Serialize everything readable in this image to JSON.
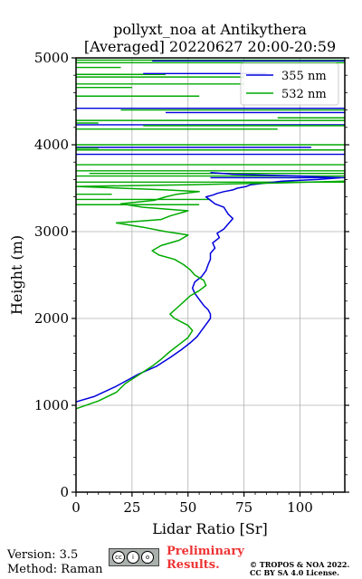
{
  "chart_data": {
    "type": "line",
    "title": "pollyxt_noa at Antikythera",
    "subtitle": "[Averaged] 20220627 20:00-20:59",
    "xlabel": "Lidar Ratio [Sr]",
    "ylabel": "Height (m)",
    "xlim": [
      0,
      120
    ],
    "ylim": [
      0,
      5000
    ],
    "xticks": [
      0,
      25,
      50,
      75,
      100
    ],
    "yticks": [
      0,
      1000,
      2000,
      3000,
      4000,
      5000
    ],
    "grid": true,
    "legend_position": "top-right",
    "series": [
      {
        "name": "355 nm",
        "color": "#0000dd",
        "x": [
          0,
          8,
          18,
          28,
          36,
          42,
          47,
          51,
          54,
          56,
          58,
          60,
          60,
          59,
          57,
          55,
          53,
          52,
          53,
          56,
          58,
          59,
          60,
          60,
          62,
          61,
          64,
          63,
          66,
          68,
          70,
          68,
          67,
          66,
          62,
          60,
          58,
          61,
          63,
          66,
          70,
          72,
          76,
          78,
          85,
          92,
          108,
          118,
          100,
          70,
          60
        ],
        "y": [
          1040,
          1100,
          1220,
          1360,
          1450,
          1550,
          1640,
          1720,
          1790,
          1860,
          1930,
          2000,
          2050,
          2100,
          2150,
          2220,
          2290,
          2350,
          2420,
          2480,
          2550,
          2620,
          2680,
          2750,
          2810,
          2870,
          2930,
          2980,
          3030,
          3090,
          3150,
          3200,
          3240,
          3280,
          3320,
          3360,
          3400,
          3420,
          3440,
          3460,
          3480,
          3500,
          3520,
          3540,
          3560,
          3580,
          3600,
          3620,
          3640,
          3660,
          3680
        ]
      },
      {
        "name": "532 nm",
        "color": "#00aa00",
        "x": [
          0,
          10,
          18,
          22,
          28,
          34,
          38,
          42,
          46,
          50,
          52,
          50,
          47,
          44,
          42,
          45,
          48,
          51,
          55,
          58,
          57,
          53,
          51,
          48,
          44,
          37,
          34,
          38,
          46,
          50,
          40,
          30,
          18,
          38,
          42,
          50,
          30,
          20,
          35,
          40,
          45,
          55,
          40,
          20,
          0,
          50,
          90,
          120
        ],
        "y": [
          960,
          1050,
          1150,
          1250,
          1350,
          1450,
          1530,
          1620,
          1700,
          1780,
          1860,
          1920,
          1960,
          2000,
          2050,
          2120,
          2190,
          2260,
          2320,
          2380,
          2440,
          2500,
          2560,
          2620,
          2680,
          2730,
          2780,
          2840,
          2900,
          2960,
          3000,
          3050,
          3100,
          3140,
          3180,
          3240,
          3280,
          3320,
          3360,
          3400,
          3430,
          3460,
          3480,
          3500,
          3520,
          3540,
          3560,
          3580
        ]
      }
    ],
    "noise_lines": [
      {
        "series": "532 nm",
        "y": 4975,
        "x0": 0,
        "x1": 120
      },
      {
        "series": "532 nm",
        "y": 4945,
        "x0": 0,
        "x1": 120
      },
      {
        "series": "355 nm",
        "y": 4965,
        "x0": 34,
        "x1": 120
      },
      {
        "series": "532 nm",
        "y": 4890,
        "x0": 0,
        "x1": 20
      },
      {
        "series": "532 nm",
        "y": 4810,
        "x0": 0,
        "x1": 40
      },
      {
        "series": "355 nm",
        "y": 4820,
        "x0": 30,
        "x1": 85
      },
      {
        "series": "532 nm",
        "y": 4780,
        "x0": 0,
        "x1": 75
      },
      {
        "series": "532 nm",
        "y": 4700,
        "x0": 0,
        "x1": 75
      },
      {
        "series": "532 nm",
        "y": 4660,
        "x0": 0,
        "x1": 25
      },
      {
        "series": "532 nm",
        "y": 4560,
        "x0": 0,
        "x1": 55
      },
      {
        "series": "355 nm",
        "y": 4420,
        "x0": 0,
        "x1": 120
      },
      {
        "series": "532 nm",
        "y": 4400,
        "x0": 20,
        "x1": 120
      },
      {
        "series": "355 nm",
        "y": 4370,
        "x0": 40,
        "x1": 120
      },
      {
        "series": "532 nm",
        "y": 4310,
        "x0": 90,
        "x1": 120
      },
      {
        "series": "532 nm",
        "y": 4280,
        "x0": 0,
        "x1": 120
      },
      {
        "series": "532 nm",
        "y": 4250,
        "x0": 0,
        "x1": 10
      },
      {
        "series": "355 nm",
        "y": 4230,
        "x0": 0,
        "x1": 120
      },
      {
        "series": "532 nm",
        "y": 4220,
        "x0": 30,
        "x1": 120
      },
      {
        "series": "532 nm",
        "y": 4180,
        "x0": 0,
        "x1": 90
      },
      {
        "series": "532 nm",
        "y": 4000,
        "x0": 0,
        "x1": 120
      },
      {
        "series": "355 nm",
        "y": 3970,
        "x0": 0,
        "x1": 105
      },
      {
        "series": "532 nm",
        "y": 3960,
        "x0": 0,
        "x1": 10
      },
      {
        "series": "532 nm",
        "y": 3940,
        "x0": 0,
        "x1": 120
      },
      {
        "series": "355 nm",
        "y": 3890,
        "x0": 0,
        "x1": 120
      },
      {
        "series": "532 nm",
        "y": 3770,
        "x0": 0,
        "x1": 120
      },
      {
        "series": "532 nm",
        "y": 3700,
        "x0": 0,
        "x1": 120
      },
      {
        "series": "532 nm",
        "y": 3670,
        "x0": 6,
        "x1": 120
      },
      {
        "series": "532 nm",
        "y": 3640,
        "x0": 0,
        "x1": 120
      },
      {
        "series": "355 nm",
        "y": 3620,
        "x0": 60,
        "x1": 120
      },
      {
        "series": "532 nm",
        "y": 3570,
        "x0": 0,
        "x1": 120
      },
      {
        "series": "532 nm",
        "y": 3430,
        "x0": 0,
        "x1": 16
      },
      {
        "series": "532 nm",
        "y": 3370,
        "x0": 0,
        "x1": 60
      },
      {
        "series": "532 nm",
        "y": 3310,
        "x0": 0,
        "x1": 55
      }
    ]
  },
  "footer": {
    "version": "Version: 3.5",
    "method": "Method: Raman",
    "preliminary_line1": "Preliminary",
    "preliminary_line2": "Results.",
    "license_line1": "© TROPOS & NOA 2022.",
    "license_line2": "CC BY SA 4.0 License.",
    "badge": "CC BY SA"
  }
}
